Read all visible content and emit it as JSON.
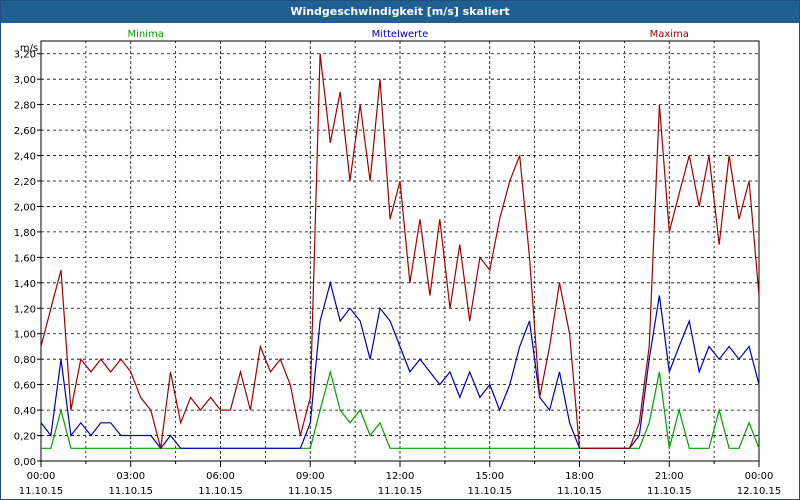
{
  "window": {
    "title": "Windgeschwindigkeit [m/s] skaliert"
  },
  "chart_data": {
    "type": "line",
    "ylabel": "m/s",
    "ylim": [
      0,
      3.3
    ],
    "yticks": [
      "0,00",
      "0,20",
      "0,40",
      "0,60",
      "0,80",
      "1,00",
      "1,20",
      "1,40",
      "1,60",
      "1,80",
      "2,00",
      "2,20",
      "2,40",
      "2,60",
      "2,80",
      "3,00",
      "3,20"
    ],
    "xlim": [
      "11.10.15 00:00",
      "12.10.15 00:00"
    ],
    "xticks": [
      {
        "time": "00:00",
        "date": "11.10.15"
      },
      {
        "time": "03:00",
        "date": "11.10.15"
      },
      {
        "time": "06:00",
        "date": "11.10.15"
      },
      {
        "time": "09:00",
        "date": "11.10.15"
      },
      {
        "time": "12:00",
        "date": "11.10.15"
      },
      {
        "time": "15:00",
        "date": "11.10.15"
      },
      {
        "time": "18:00",
        "date": "11.10.15"
      },
      {
        "time": "21:00",
        "date": "11.10.15"
      },
      {
        "time": "00:00",
        "date": "12.10.15"
      }
    ],
    "grid": true,
    "x_hours": [
      0,
      0.33,
      0.67,
      1,
      1.33,
      1.67,
      2,
      2.33,
      2.67,
      3,
      3.33,
      3.67,
      4,
      4.33,
      4.67,
      5,
      5.33,
      5.67,
      6,
      6.33,
      6.67,
      7,
      7.33,
      7.67,
      8,
      8.33,
      8.67,
      9,
      9.33,
      9.67,
      10,
      10.33,
      10.67,
      11,
      11.33,
      11.67,
      12,
      12.33,
      12.67,
      13,
      13.33,
      13.67,
      14,
      14.33,
      14.67,
      15,
      15.33,
      15.67,
      16,
      16.33,
      16.67,
      17,
      17.33,
      17.67,
      18,
      18.33,
      18.67,
      19,
      19.33,
      19.67,
      20,
      20.33,
      20.67,
      21,
      21.33,
      21.67,
      22,
      22.33,
      22.67,
      23,
      23.33,
      23.67,
      24
    ],
    "series": [
      {
        "name": "Minima",
        "color": "#00a000",
        "values": [
          0.1,
          0.1,
          0.4,
          0.1,
          0.1,
          0.1,
          0.1,
          0.1,
          0.1,
          0.1,
          0.1,
          0.1,
          0.1,
          0.1,
          0.1,
          0.1,
          0.1,
          0.1,
          0.1,
          0.1,
          0.1,
          0.1,
          0.1,
          0.1,
          0.1,
          0.1,
          0.1,
          0.1,
          0.4,
          0.7,
          0.4,
          0.3,
          0.4,
          0.2,
          0.3,
          0.1,
          0.1,
          0.1,
          0.1,
          0.1,
          0.1,
          0.1,
          0.1,
          0.1,
          0.1,
          0.1,
          0.1,
          0.1,
          0.1,
          0.1,
          0.1,
          0.1,
          0.1,
          0.1,
          0.1,
          0.1,
          0.1,
          0.1,
          0.1,
          0.1,
          0.1,
          0.3,
          0.7,
          0.1,
          0.4,
          0.1,
          0.1,
          0.1,
          0.4,
          0.1,
          0.1,
          0.3,
          0.1
        ]
      },
      {
        "name": "Mittelwerte",
        "color": "#0000b0",
        "values": [
          0.3,
          0.2,
          0.8,
          0.2,
          0.3,
          0.2,
          0.3,
          0.3,
          0.2,
          0.2,
          0.2,
          0.2,
          0.1,
          0.2,
          0.1,
          0.1,
          0.1,
          0.1,
          0.1,
          0.1,
          0.1,
          0.1,
          0.1,
          0.1,
          0.1,
          0.1,
          0.1,
          0.3,
          1.1,
          1.4,
          1.1,
          1.2,
          1.1,
          0.8,
          1.2,
          1.1,
          0.9,
          0.7,
          0.8,
          0.7,
          0.6,
          0.7,
          0.5,
          0.7,
          0.5,
          0.6,
          0.4,
          0.6,
          0.9,
          1.1,
          0.5,
          0.4,
          0.7,
          0.3,
          0.1,
          0.1,
          0.1,
          0.1,
          0.1,
          0.1,
          0.2,
          0.8,
          1.3,
          0.7,
          0.9,
          1.1,
          0.7,
          0.9,
          0.8,
          0.9,
          0.8,
          0.9,
          0.6
        ]
      },
      {
        "name": "Maxima",
        "color": "#a00000",
        "values": [
          0.9,
          1.2,
          1.5,
          0.4,
          0.8,
          0.7,
          0.8,
          0.7,
          0.8,
          0.7,
          0.5,
          0.4,
          0.1,
          0.7,
          0.3,
          0.5,
          0.4,
          0.5,
          0.4,
          0.4,
          0.7,
          0.4,
          0.9,
          0.7,
          0.8,
          0.6,
          0.2,
          0.5,
          3.2,
          2.5,
          2.9,
          2.2,
          2.8,
          2.2,
          3.0,
          1.9,
          2.2,
          1.4,
          1.9,
          1.3,
          1.9,
          1.2,
          1.7,
          1.1,
          1.6,
          1.5,
          1.9,
          2.2,
          2.4,
          1.6,
          0.5,
          0.9,
          1.4,
          1.0,
          0.1,
          0.1,
          0.1,
          0.1,
          0.1,
          0.1,
          0.3,
          0.9,
          2.8,
          1.8,
          2.1,
          2.4,
          2.0,
          2.4,
          1.7,
          2.4,
          1.9,
          2.2,
          1.3
        ]
      }
    ]
  }
}
